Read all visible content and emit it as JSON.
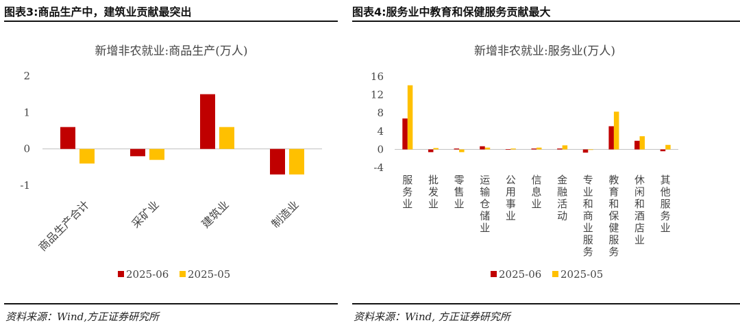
{
  "left": {
    "figure_title": "图表3:商品生产中，建筑业贡献最突出",
    "source": "资料来源：Wind,方正证券研究所"
  },
  "right": {
    "figure_title": "图表4:服务业中教育和保健服务贡献最大",
    "source": "资料来源：Wind, 方正证券研究所"
  },
  "colors": {
    "series_2025_06": "#C00000",
    "series_2025_05": "#FFC000"
  },
  "chart_data": [
    {
      "type": "bar",
      "title": "新增非农就业:商品生产(万人)",
      "categories": [
        "商品生产合计",
        "采矿业",
        "建筑业",
        "制造业"
      ],
      "series": [
        {
          "name": "2025-06",
          "values": [
            0.6,
            -0.2,
            1.5,
            -0.7
          ]
        },
        {
          "name": "2025-05",
          "values": [
            -0.4,
            -0.3,
            0.6,
            -0.7
          ]
        }
      ],
      "ylim": [
        -1,
        2
      ],
      "yticks": [
        "-1",
        "0",
        "1",
        "2"
      ],
      "legend": "bottom",
      "grid": false
    },
    {
      "type": "bar",
      "title": "新增非农就业:服务业(万人)",
      "categories": [
        "服务业",
        "批发业",
        "零售业",
        "运输仓储业",
        "公用事业",
        "信息业",
        "金融活动",
        "专业和商业服务",
        "教育和保健服务",
        "休闲和酒店业",
        "其他服务业"
      ],
      "series": [
        {
          "name": "2025-06",
          "values": [
            6.8,
            -0.6,
            0.2,
            0.7,
            0.05,
            0.2,
            0.2,
            -0.7,
            5.1,
            1.9,
            -0.4
          ]
        },
        {
          "name": "2025-05",
          "values": [
            14.1,
            0.3,
            -0.6,
            0.4,
            0.2,
            0.4,
            0.9,
            0.0,
            8.3,
            2.9,
            1.0
          ]
        }
      ],
      "ylim": [
        -4,
        16
      ],
      "yticks": [
        "-4",
        "0",
        "4",
        "8",
        "12",
        "16"
      ],
      "legend": "bottom",
      "grid": false
    }
  ]
}
